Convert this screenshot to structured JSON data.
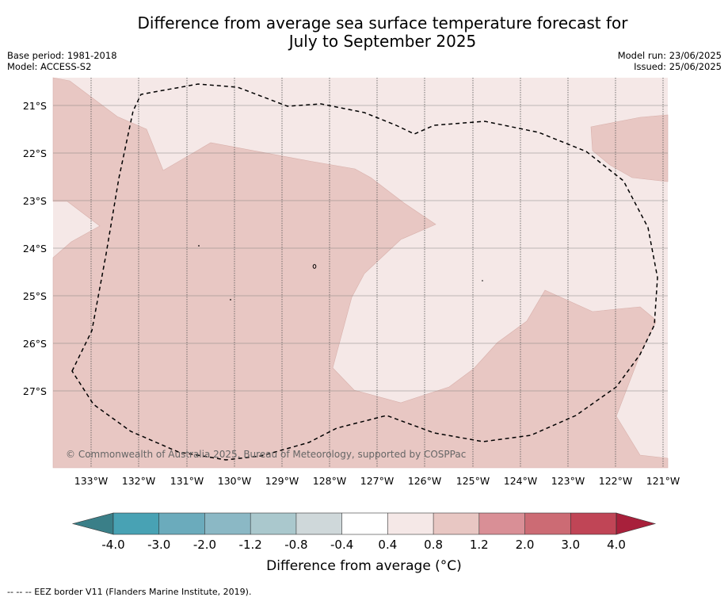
{
  "title_line1": "Difference from average sea surface temperature forecast for",
  "title_line2": "July to September 2025",
  "base_period": "Base period: 1981-2018",
  "model": "Model: ACCESS-S2",
  "model_run": "Model run: 23/06/2025",
  "issued": "Issued: 25/06/2025",
  "copyright": "© Commonwealth of Australia 2025, Bureau of Meteorology, supported by COSPPac",
  "lat_labels": [
    "21°S",
    "22°S",
    "23°S",
    "24°S",
    "25°S",
    "26°S",
    "27°S"
  ],
  "lon_labels": [
    "133°W",
    "132°W",
    "131°W",
    "130°W",
    "129°W",
    "128°W",
    "127°W",
    "126°W",
    "125°W",
    "124°W",
    "123°W",
    "122°W",
    "121°W"
  ],
  "colorbar": {
    "ticks": [
      "-4.0",
      "-3.0",
      "-2.0",
      "-1.2",
      "-0.8",
      "-0.4",
      "0.4",
      "0.8",
      "1.2",
      "2.0",
      "3.0",
      "4.0"
    ],
    "colors": [
      "#48a2b4",
      "#6babbc",
      "#8bb8c5",
      "#aac8cd",
      "#cfd8da",
      "#ffffff",
      "#f5e8e7",
      "#e8c7c3",
      "#d98f96",
      "#cc6b74",
      "#c04556"
    ],
    "under_color": "#3a7f88",
    "over_color": "#a8203b",
    "label": "Difference from average (°C)"
  },
  "map_colors": {
    "light": "#f5e8e7",
    "medium": "#e8c7c3"
  },
  "footer": "--  --  -- EEZ border V11 (Flanders Marine Institute, 2019)."
}
